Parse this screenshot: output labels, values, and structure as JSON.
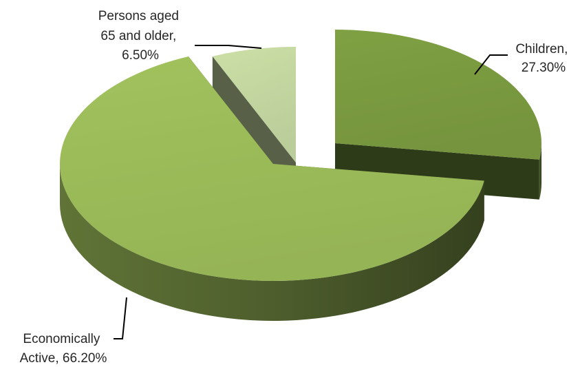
{
  "chart_data": {
    "type": "pie",
    "style": "3d-exploded",
    "title": "",
    "slices": [
      {
        "category": "Children",
        "value": 27.3,
        "label_lines": [
          "Children,",
          "27.30%"
        ],
        "color": "#7a9a40"
      },
      {
        "category": "Economically Active",
        "value": 66.2,
        "label_lines": [
          "Economically",
          "Active, 66.20%"
        ],
        "color": "#9bbb59"
      },
      {
        "category": "Persons aged 65 and older",
        "value": 6.5,
        "label_lines": [
          "Persons aged",
          "65 and older,",
          "6.50%"
        ],
        "color": "#c3d6a0"
      }
    ],
    "legend": "none"
  }
}
